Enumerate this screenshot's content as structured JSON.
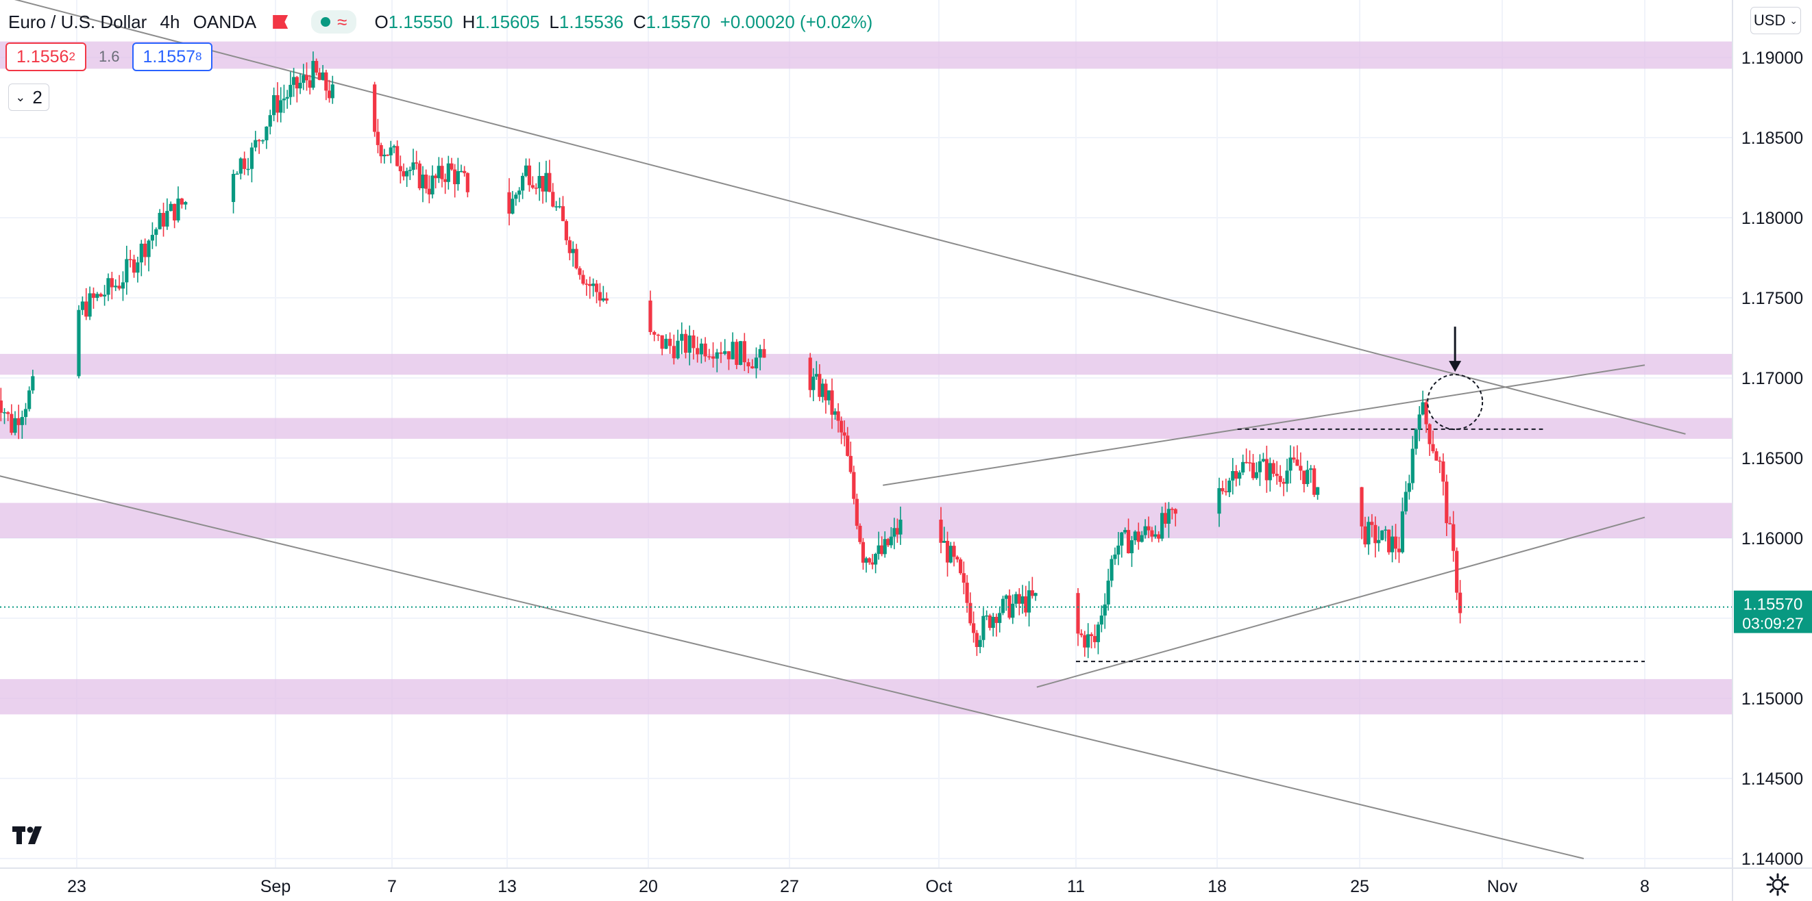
{
  "header": {
    "symbol": "Euro / U.S. Dollar",
    "interval": "4h",
    "broker": "OANDA",
    "ohlc": {
      "open_label": "O",
      "open": "1.15550",
      "high_label": "H",
      "high": "1.15605",
      "low_label": "L",
      "low": "1.15536",
      "close_label": "C",
      "close": "1.15570",
      "change": "+0.00020 (+0.02%)"
    }
  },
  "trade": {
    "sell_price": "1.1556",
    "sell_price_small": "2",
    "spread": "1.6",
    "buy_price": "1.1557",
    "buy_price_small": "8"
  },
  "indicator_toggle": {
    "count": "2"
  },
  "currency_menu": {
    "label": "USD"
  },
  "price_scale": {
    "labels": [
      "1.19000",
      "1.18500",
      "1.18000",
      "1.17500",
      "1.17000",
      "1.16500",
      "1.16000",
      "1.15500",
      "1.15000",
      "1.14500",
      "1.14000"
    ],
    "last_price": "1.15570",
    "countdown": "03:09:27"
  },
  "time_scale": {
    "labels": [
      "23",
      "Sep",
      "7",
      "13",
      "20",
      "27",
      "Oct",
      "11",
      "18",
      "25",
      "Nov",
      "8"
    ]
  },
  "colors": {
    "bull": "#089981",
    "bear": "#f23645",
    "zone": "#e1bee7",
    "trendline": "#8c8c8c",
    "last_price": "#089981"
  },
  "icons": {
    "logo": "tradingview-logo-icon",
    "settings": "gear-icon",
    "flag": "flag-icon",
    "status": "market-open-icon"
  },
  "chart_data": {
    "type": "candlestick",
    "title": "Euro / U.S. Dollar",
    "interval": "4h",
    "ylim": [
      1.1385,
      1.1928
    ],
    "y_ticks": [
      1.19,
      1.185,
      1.18,
      1.175,
      1.17,
      1.165,
      1.16,
      1.155,
      1.15,
      1.145,
      1.14
    ],
    "grid": true,
    "last_price": 1.1557,
    "price_trajectory_anchors": [
      [
        "Aug 19",
        1.17
      ],
      [
        "Aug 20",
        1.167
      ],
      [
        "Aug 23",
        1.174
      ],
      [
        "Aug 25",
        1.176
      ],
      [
        "Aug 27",
        1.18
      ],
      [
        "Aug 31",
        1.184
      ],
      [
        "Sep 1",
        1.187
      ],
      [
        "Sep 3",
        1.189
      ],
      [
        "Sep 6",
        1.185
      ],
      [
        "Sep 8",
        1.183
      ],
      [
        "Sep 9",
        1.182
      ],
      [
        "Sep 10",
        1.183
      ],
      [
        "Sep 13",
        1.18
      ],
      [
        "Sep 14",
        1.183
      ],
      [
        "Sep 15",
        1.182
      ],
      [
        "Sep 17",
        1.176
      ],
      [
        "Sep 20",
        1.1725
      ],
      [
        "Sep 21",
        1.172
      ],
      [
        "Sep 22",
        1.172
      ],
      [
        "Sep 23",
        1.172
      ],
      [
        "Sep 24",
        1.1715
      ],
      [
        "Sep 27",
        1.17
      ],
      [
        "Sep 28",
        1.169
      ],
      [
        "Sep 29",
        1.166
      ],
      [
        "Sep 30",
        1.159
      ],
      [
        "Oct 1",
        1.159
      ],
      [
        "Oct 3",
        1.1625
      ],
      [
        "Oct 5",
        1.158
      ],
      [
        "Oct 6",
        1.154
      ],
      [
        "Oct 7",
        1.1555
      ],
      [
        "Oct 10",
        1.1565
      ],
      [
        "Oct 11",
        1.154
      ],
      [
        "Oct 12",
        1.1535
      ],
      [
        "Oct 13",
        1.1595
      ],
      [
        "Oct 14",
        1.16
      ],
      [
        "Oct 18",
        1.1625
      ],
      [
        "Oct 19",
        1.1645
      ],
      [
        "Oct 20",
        1.1645
      ],
      [
        "Oct 21",
        1.164
      ],
      [
        "Oct 22",
        1.1645
      ],
      [
        "Oct 25",
        1.1605
      ],
      [
        "Oct 26",
        1.16
      ],
      [
        "Oct 27",
        1.1595
      ],
      [
        "Oct 28",
        1.1685
      ],
      [
        "Oct 29",
        1.1645
      ],
      [
        "Oct 30",
        1.1557
      ],
      [
        "Nov 1",
        1.1557
      ]
    ],
    "sr_zones": [
      [
        1.1893,
        1.191
      ],
      [
        1.1702,
        1.1715
      ],
      [
        1.1662,
        1.1675
      ],
      [
        1.16,
        1.1622
      ],
      [
        1.149,
        1.1512
      ]
    ],
    "trendlines": [
      {
        "from": [
          "Aug 19",
          1.194
        ],
        "to": [
          "Nov 10",
          1.1665
        ]
      },
      {
        "from": [
          "Aug 19",
          1.164
        ],
        "to": [
          "Nov 5",
          1.14
        ]
      },
      {
        "from": [
          "Oct 1",
          1.1633
        ],
        "to": [
          "Nov 8",
          1.1708
        ]
      },
      {
        "from": [
          "Oct 9",
          1.1507
        ],
        "to": [
          "Nov 8",
          1.1613
        ]
      }
    ],
    "dashed_levels": [
      {
        "from": "Oct 19",
        "to": "Nov 3",
        "price": 1.1668
      },
      {
        "from": "Oct 11",
        "to": "Nov 8",
        "price": 1.1523
      }
    ],
    "annotations": [
      "down-arrow at Oct 28 high",
      "circle around Oct 28 high"
    ]
  }
}
